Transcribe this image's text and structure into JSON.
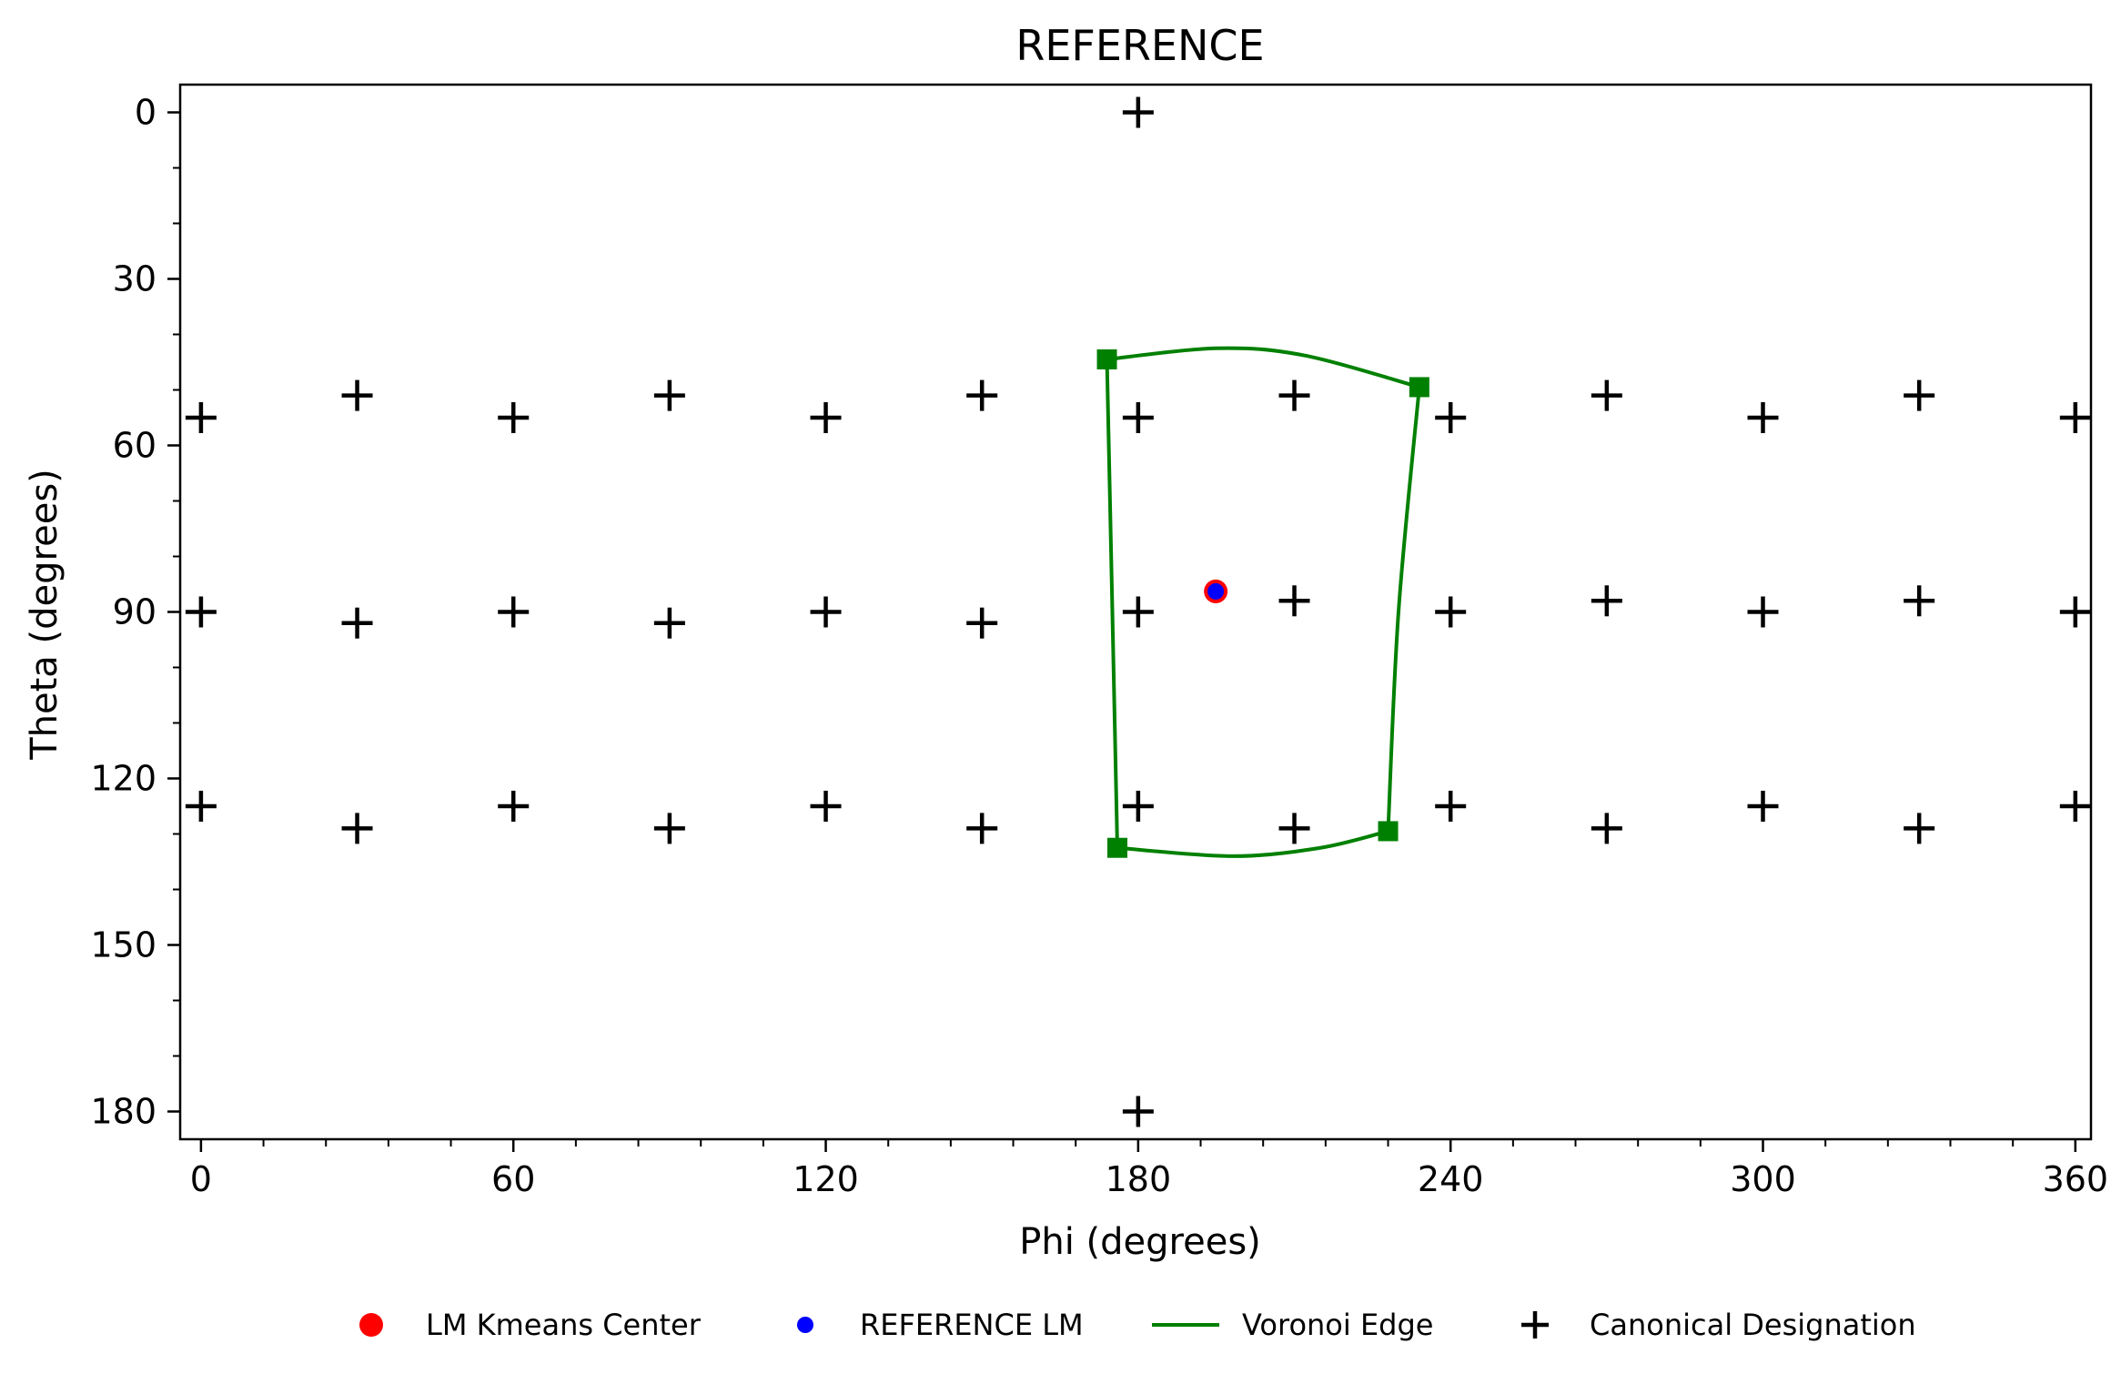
{
  "chart_data": {
    "type": "scatter",
    "title": "REFERENCE",
    "xlabel": "Phi (degrees)",
    "ylabel": "Theta (degrees)",
    "xlim": [
      -4,
      363
    ],
    "ylim": [
      185,
      -5
    ],
    "y_inverted": true,
    "x_ticks": [
      0,
      60,
      120,
      180,
      240,
      300,
      360
    ],
    "y_ticks": [
      0,
      30,
      60,
      90,
      120,
      150,
      180
    ],
    "x_minor_step": 12,
    "y_minor_step": 10,
    "grid": false,
    "legend_position": "bottom-center",
    "series": [
      {
        "name": "LM Kmeans Center",
        "kind": "marker-circle",
        "color": "#ff0000",
        "points": [
          [
            194.9,
            86.3
          ]
        ]
      },
      {
        "name": "REFERENCE LM",
        "kind": "marker-circle",
        "color": "#0000ff",
        "points": [
          [
            194.9,
            86.3
          ]
        ]
      },
      {
        "name": "Voronoi Edge",
        "kind": "line",
        "color": "#008000",
        "vertices": [
          [
            174,
            44.5
          ],
          [
            234,
            49.5
          ],
          [
            228,
            129.5
          ],
          [
            176,
            132.5
          ]
        ],
        "edges": [
          [
            [
              174,
              44.5
            ],
            [
              195,
              42.5
            ],
            [
              212,
              43.8
            ],
            [
              234,
              49.5
            ]
          ],
          [
            [
              174,
              44.5
            ],
            [
              175,
              88
            ],
            [
              176,
              132.5
            ]
          ],
          [
            [
              234,
              49.5
            ],
            [
              230,
              90
            ],
            [
              228,
              129.5
            ]
          ],
          [
            [
              176,
              132.5
            ],
            [
              198,
              134
            ],
            [
              215,
              132.5
            ],
            [
              228,
              129.5
            ]
          ]
        ]
      },
      {
        "name": "Canonical Designation",
        "kind": "marker-plus",
        "color": "#000000",
        "points": [
          [
            180,
            0
          ],
          [
            0,
            55
          ],
          [
            30,
            51
          ],
          [
            60,
            55
          ],
          [
            90,
            51
          ],
          [
            120,
            55
          ],
          [
            150,
            51
          ],
          [
            180,
            55
          ],
          [
            210,
            51
          ],
          [
            240,
            55
          ],
          [
            270,
            51
          ],
          [
            300,
            55
          ],
          [
            330,
            51
          ],
          [
            360,
            55
          ],
          [
            0,
            90
          ],
          [
            30,
            92
          ],
          [
            60,
            90
          ],
          [
            90,
            92
          ],
          [
            120,
            90
          ],
          [
            150,
            92
          ],
          [
            180,
            90
          ],
          [
            210,
            88
          ],
          [
            240,
            90
          ],
          [
            270,
            88
          ],
          [
            300,
            90
          ],
          [
            330,
            88
          ],
          [
            360,
            90
          ],
          [
            0,
            125
          ],
          [
            30,
            129
          ],
          [
            60,
            125
          ],
          [
            90,
            129
          ],
          [
            120,
            125
          ],
          [
            150,
            129
          ],
          [
            180,
            125
          ],
          [
            210,
            129
          ],
          [
            240,
            125
          ],
          [
            270,
            129
          ],
          [
            300,
            125
          ],
          [
            330,
            129
          ],
          [
            360,
            125
          ],
          [
            180,
            180
          ]
        ]
      }
    ]
  }
}
